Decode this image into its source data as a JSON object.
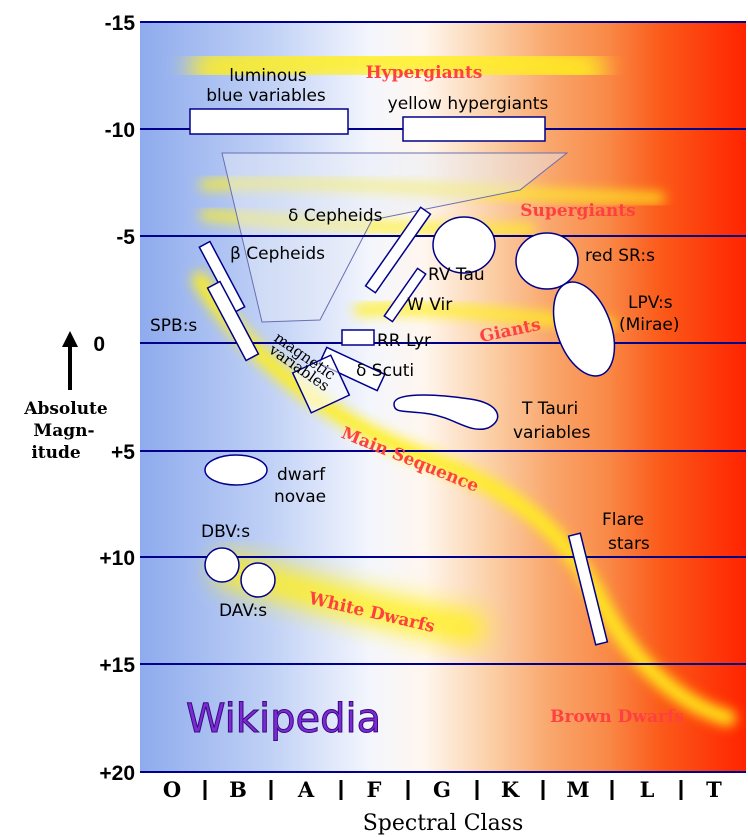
{
  "diagram": {
    "y_axis": {
      "title_lines": [
        "Absolute",
        "Magn-",
        "itude"
      ],
      "ticks": [
        "-15",
        "-10",
        "-5",
        "0",
        "+5",
        "+10",
        "+15",
        "+20"
      ]
    },
    "x_axis": {
      "title": "Spectral Class",
      "classes": [
        "O",
        "B",
        "A",
        "F",
        "G",
        "K",
        "M",
        "L",
        "T"
      ]
    },
    "regions": {
      "hypergiants": "Hypergiants",
      "supergiants": "Supergiants",
      "giants": "Giants",
      "main_sequence": "Main Sequence",
      "white_dwarfs": "White Dwarfs",
      "brown_dwarfs": "Brown Dwarfs"
    },
    "variables": {
      "lbv_line1": "luminous",
      "lbv_line2": "blue variables",
      "yellow_hypergiants": "yellow hypergiants",
      "delta_cepheids": "δ Cepheids",
      "beta_cepheids": "β Cepheids",
      "rv_tau": "RV Tau",
      "red_sr": "red SR:s",
      "w_vir": "W Vir",
      "lpv_line1": "LPV:s",
      "lpv_line2": "(Mirae)",
      "spb": "SPB:s",
      "rr_lyr": "RR Lyr",
      "magnetic_line1": "magnetic",
      "magnetic_line2": "variables",
      "delta_scuti": "δ Scuti",
      "t_tauri_line1": "T Tauri",
      "t_tauri_line2": "variables",
      "dwarf_novae_line1": "dwarf",
      "dwarf_novae_line2": "novae",
      "dbv": "DBV:s",
      "dav": "DAV:s",
      "flare_line1": "Flare",
      "flare_line2": "stars"
    },
    "watermark": "Wikipedia",
    "colors": {
      "hot_blue": "#9db5ef",
      "white": "#ffffff",
      "orange": "#f8a56c",
      "red": "#ff2a00",
      "region_label": "#ff4040",
      "band_yellow": "#ffee22",
      "grid_line": "#00008b",
      "watermark": "#7a2bd6"
    }
  }
}
